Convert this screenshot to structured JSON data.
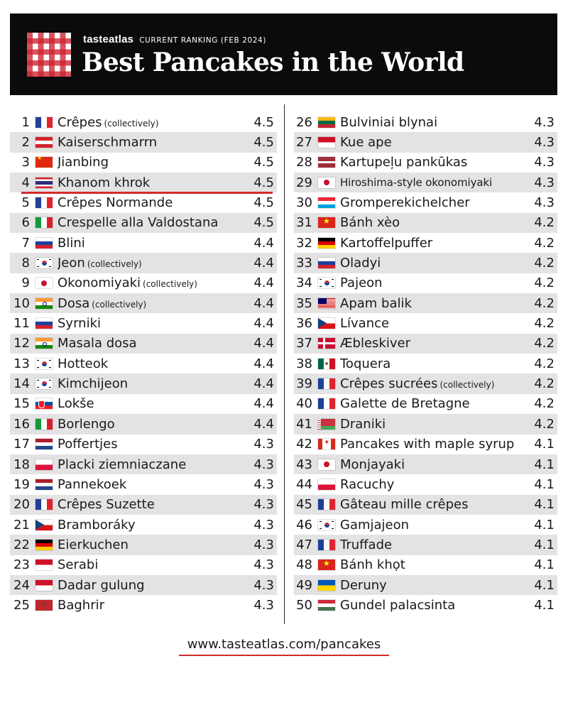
{
  "header": {
    "brand": "tasteatlas",
    "subtitle": "CURRENT RANKING (FEB 2024)",
    "title": "Best Pancakes in the World"
  },
  "left_items": [
    {
      "rank": "1",
      "flag": "fr",
      "name": "Crêpes",
      "qualifier": "(collectively)",
      "score": "4.5"
    },
    {
      "rank": "2",
      "flag": "at",
      "name": "Kaiserschmarrn",
      "qualifier": "",
      "score": "4.5"
    },
    {
      "rank": "3",
      "flag": "cn",
      "name": "Jianbing",
      "qualifier": "",
      "score": "4.5"
    },
    {
      "rank": "4",
      "flag": "th",
      "name": "Khanom khrok",
      "qualifier": "",
      "score": "4.5"
    },
    {
      "rank": "5",
      "flag": "fr",
      "name": "Crêpes Normande",
      "qualifier": "",
      "score": "4.5"
    },
    {
      "rank": "6",
      "flag": "it",
      "name": "Crespelle alla Valdostana",
      "qualifier": "",
      "score": "4.5"
    },
    {
      "rank": "7",
      "flag": "ru",
      "name": "Blini",
      "qualifier": "",
      "score": "4.4"
    },
    {
      "rank": "8",
      "flag": "kr",
      "name": "Jeon",
      "qualifier": "(collectively)",
      "score": "4.4"
    },
    {
      "rank": "9",
      "flag": "jp",
      "name": "Okonomiyaki",
      "qualifier": "(collectively)",
      "score": "4.4"
    },
    {
      "rank": "10",
      "flag": "in",
      "name": "Dosa",
      "qualifier": "(collectively)",
      "score": "4.4"
    },
    {
      "rank": "11",
      "flag": "ru",
      "name": "Syrniki",
      "qualifier": "",
      "score": "4.4"
    },
    {
      "rank": "12",
      "flag": "in",
      "name": "Masala dosa",
      "qualifier": "",
      "score": "4.4"
    },
    {
      "rank": "13",
      "flag": "kr",
      "name": "Hotteok",
      "qualifier": "",
      "score": "4.4"
    },
    {
      "rank": "14",
      "flag": "kr",
      "name": "Kimchijeon",
      "qualifier": "",
      "score": "4.4"
    },
    {
      "rank": "15",
      "flag": "sk",
      "name": "Lokše",
      "qualifier": "",
      "score": "4.4"
    },
    {
      "rank": "16",
      "flag": "it",
      "name": "Borlengo",
      "qualifier": "",
      "score": "4.4"
    },
    {
      "rank": "17",
      "flag": "nl",
      "name": "Poffertjes",
      "qualifier": "",
      "score": "4.3"
    },
    {
      "rank": "18",
      "flag": "pl",
      "name": "Placki ziemniaczane",
      "qualifier": "",
      "score": "4.3"
    },
    {
      "rank": "19",
      "flag": "nl",
      "name": "Pannekoek",
      "qualifier": "",
      "score": "4.3"
    },
    {
      "rank": "20",
      "flag": "fr",
      "name": "Crêpes Suzette",
      "qualifier": "",
      "score": "4.3"
    },
    {
      "rank": "21",
      "flag": "cz",
      "name": "Bramboráky",
      "qualifier": "",
      "score": "4.3"
    },
    {
      "rank": "22",
      "flag": "de",
      "name": "Eierkuchen",
      "qualifier": "",
      "score": "4.3"
    },
    {
      "rank": "23",
      "flag": "id",
      "name": "Serabi",
      "qualifier": "",
      "score": "4.3"
    },
    {
      "rank": "24",
      "flag": "id",
      "name": "Dadar gulung",
      "qualifier": "",
      "score": "4.3"
    },
    {
      "rank": "25",
      "flag": "ma",
      "name": "Baghrir",
      "qualifier": "",
      "score": "4.3"
    }
  ],
  "right_items": [
    {
      "rank": "26",
      "flag": "lt",
      "name": "Bulviniai blynai",
      "qualifier": "",
      "score": "4.3"
    },
    {
      "rank": "27",
      "flag": "id",
      "name": "Kue ape",
      "qualifier": "",
      "score": "4.3"
    },
    {
      "rank": "28",
      "flag": "lv",
      "name": "Kartupeļu pankūkas",
      "qualifier": "",
      "score": "4.3"
    },
    {
      "rank": "29",
      "flag": "jp",
      "name": "Hiroshima-style okonomiyaki",
      "qualifier": "",
      "score": "4.3"
    },
    {
      "rank": "30",
      "flag": "lu",
      "name": "Gromperekichelcher",
      "qualifier": "",
      "score": "4.3"
    },
    {
      "rank": "31",
      "flag": "vn",
      "name": "Bánh xèo",
      "qualifier": "",
      "score": "4.2"
    },
    {
      "rank": "32",
      "flag": "de",
      "name": "Kartoffelpuffer",
      "qualifier": "",
      "score": "4.2"
    },
    {
      "rank": "33",
      "flag": "ru",
      "name": "Oladyi",
      "qualifier": "",
      "score": "4.2"
    },
    {
      "rank": "34",
      "flag": "kr",
      "name": "Pajeon",
      "qualifier": "",
      "score": "4.2"
    },
    {
      "rank": "35",
      "flag": "my",
      "name": "Apam balik",
      "qualifier": "",
      "score": "4.2"
    },
    {
      "rank": "36",
      "flag": "cz",
      "name": "Lívance",
      "qualifier": "",
      "score": "4.2"
    },
    {
      "rank": "37",
      "flag": "dk",
      "name": "Æbleskiver",
      "qualifier": "",
      "score": "4.2"
    },
    {
      "rank": "38",
      "flag": "mx",
      "name": "Toquera",
      "qualifier": "",
      "score": "4.2"
    },
    {
      "rank": "39",
      "flag": "fr",
      "name": "Crêpes sucrées",
      "qualifier": "(collectively)",
      "score": "4.2"
    },
    {
      "rank": "40",
      "flag": "fr",
      "name": "Galette de Bretagne",
      "qualifier": "",
      "score": "4.2"
    },
    {
      "rank": "41",
      "flag": "by",
      "name": "Draniki",
      "qualifier": "",
      "score": "4.2"
    },
    {
      "rank": "42",
      "flag": "ca",
      "name": "Pancakes with maple syrup",
      "qualifier": "",
      "score": "4.1"
    },
    {
      "rank": "43",
      "flag": "jp",
      "name": "Monjayaki",
      "qualifier": "",
      "score": "4.1"
    },
    {
      "rank": "44",
      "flag": "pl",
      "name": "Racuchy",
      "qualifier": "",
      "score": "4.1"
    },
    {
      "rank": "45",
      "flag": "fr",
      "name": "Gâteau mille crêpes",
      "qualifier": "",
      "score": "4.1"
    },
    {
      "rank": "46",
      "flag": "kr",
      "name": "Gamjajeon",
      "qualifier": "",
      "score": "4.1"
    },
    {
      "rank": "47",
      "flag": "fr",
      "name": "Truffade",
      "qualifier": "",
      "score": "4.1"
    },
    {
      "rank": "48",
      "flag": "vn",
      "name": "Bánh khọt",
      "qualifier": "",
      "score": "4.1"
    },
    {
      "rank": "49",
      "flag": "ua",
      "name": "Deruny",
      "qualifier": "",
      "score": "4.1"
    },
    {
      "rank": "50",
      "flag": "hu",
      "name": "Gundel palacsinta",
      "qualifier": "",
      "score": "4.1"
    }
  ],
  "highlighted_rank": "4",
  "small_name_ranks": [
    "29"
  ],
  "footer": {
    "url": "www.tasteatlas.com/pancakes"
  },
  "colors": {
    "header_bg": "#0b0b0b",
    "accent_red": "#d22c2c",
    "row_alt": "#e3e3e3"
  }
}
